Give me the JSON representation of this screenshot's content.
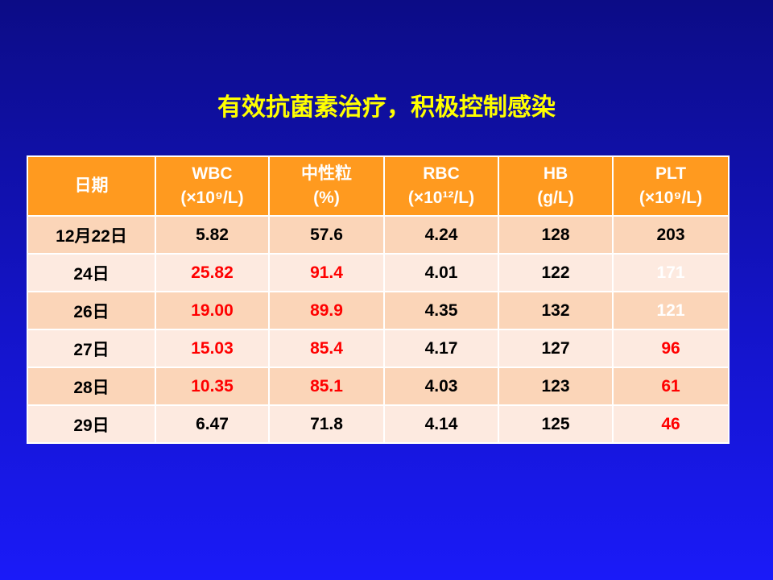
{
  "title": "有效抗菌素治疗，积极控制感染",
  "table": {
    "header": [
      [
        "日期"
      ],
      [
        "WBC",
        "(×10⁹/L)"
      ],
      [
        "中性粒",
        "(%)"
      ],
      [
        "RBC",
        "(×10¹²/L)"
      ],
      [
        "HB",
        "(g/L)"
      ],
      [
        "PLT",
        "(×10⁹/L)"
      ]
    ],
    "rows": [
      [
        "12月22日",
        "5.82",
        "57.6",
        "4.24",
        "128",
        "203"
      ],
      [
        "24日",
        "25.82",
        "91.4",
        "4.01",
        "122",
        "171"
      ],
      [
        "26日",
        "19.00",
        "89.9",
        "4.35",
        "132",
        "121"
      ],
      [
        "27日",
        "15.03",
        "85.4",
        "4.17",
        "127",
        "96"
      ],
      [
        "28日",
        "10.35",
        "85.1",
        "4.03",
        "123",
        "61"
      ],
      [
        "29日",
        "6.47",
        "71.8",
        "4.14",
        "125",
        "46"
      ]
    ],
    "cell_colors": [
      [
        "#000000",
        "#000000",
        "#000000",
        "#000000",
        "#000000",
        "#000000"
      ],
      [
        "#000000",
        "#ff0000",
        "#ff0000",
        "#000000",
        "#000000",
        "#ffffff"
      ],
      [
        "#000000",
        "#ff0000",
        "#ff0000",
        "#000000",
        "#000000",
        "#ffffff"
      ],
      [
        "#000000",
        "#ff0000",
        "#ff0000",
        "#000000",
        "#000000",
        "#ff0000"
      ],
      [
        "#000000",
        "#ff0000",
        "#ff0000",
        "#000000",
        "#000000",
        "#ff0000"
      ],
      [
        "#000000",
        "#000000",
        "#000000",
        "#000000",
        "#000000",
        "#ff0000"
      ]
    ]
  }
}
